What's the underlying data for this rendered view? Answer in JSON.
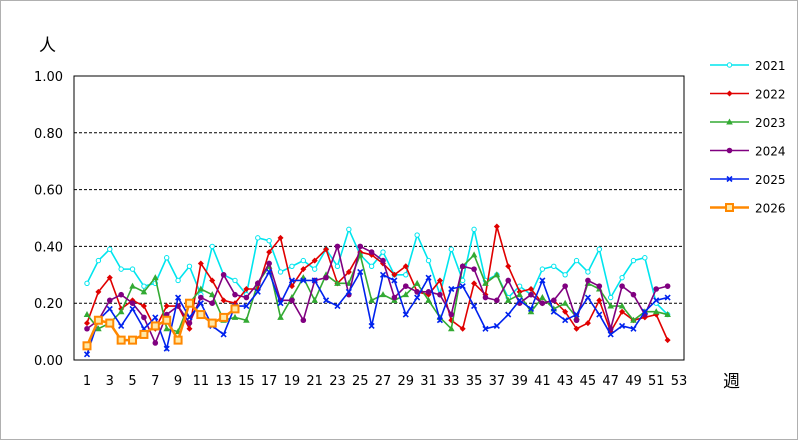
{
  "chart_data": {
    "type": "line",
    "ylabel": "人",
    "xlabel": "週",
    "ylim": [
      0,
      1.0
    ],
    "yticks": [
      "0.00",
      "0.20",
      "0.40",
      "0.60",
      "0.80",
      "1.00"
    ],
    "xlim": [
      1,
      53
    ],
    "xticks": [
      1,
      3,
      5,
      7,
      9,
      11,
      13,
      15,
      17,
      19,
      21,
      23,
      25,
      27,
      29,
      31,
      33,
      35,
      37,
      39,
      41,
      43,
      45,
      47,
      49,
      51,
      53
    ],
    "grid": "horizontal-dashed",
    "legend_position": "right",
    "series": [
      {
        "name": "2021",
        "color": "#00e5ee",
        "marker": "circle-open",
        "values": [
          0.27,
          0.35,
          0.39,
          0.32,
          0.32,
          0.26,
          0.27,
          0.36,
          0.28,
          0.33,
          0.23,
          0.4,
          0.3,
          0.28,
          0.23,
          0.43,
          0.42,
          0.31,
          0.33,
          0.35,
          0.32,
          0.39,
          0.33,
          0.46,
          0.37,
          0.33,
          0.38,
          0.3,
          0.3,
          0.44,
          0.35,
          0.23,
          0.39,
          0.28,
          0.46,
          0.28,
          0.3,
          0.22,
          0.26,
          0.23,
          0.32,
          0.33,
          0.3,
          0.35,
          0.31,
          0.39,
          0.22,
          0.29,
          0.35,
          0.36,
          0.2,
          0.16
        ]
      },
      {
        "name": "2022",
        "color": "#e00000",
        "marker": "diamond",
        "values": [
          0.13,
          0.24,
          0.29,
          0.18,
          0.21,
          0.19,
          0.11,
          0.19,
          0.19,
          0.11,
          0.34,
          0.28,
          0.21,
          0.2,
          0.25,
          0.25,
          0.38,
          0.43,
          0.26,
          0.32,
          0.35,
          0.39,
          0.27,
          0.31,
          0.38,
          0.37,
          0.34,
          0.3,
          0.33,
          0.24,
          0.23,
          0.28,
          0.14,
          0.11,
          0.27,
          0.23,
          0.47,
          0.33,
          0.24,
          0.25,
          0.2,
          0.21,
          0.17,
          0.11,
          0.13,
          0.21,
          0.1,
          0.17,
          0.14,
          0.15,
          0.16,
          0.07
        ]
      },
      {
        "name": "2023",
        "color": "#33aa33",
        "marker": "triangle",
        "values": [
          0.16,
          0.11,
          0.13,
          0.17,
          0.26,
          0.24,
          0.29,
          0.11,
          0.1,
          0.2,
          0.25,
          0.23,
          0.14,
          0.15,
          0.14,
          0.27,
          0.33,
          0.15,
          0.22,
          0.29,
          0.21,
          0.3,
          0.27,
          0.27,
          0.37,
          0.21,
          0.23,
          0.21,
          0.23,
          0.27,
          0.21,
          0.15,
          0.11,
          0.33,
          0.37,
          0.27,
          0.3,
          0.21,
          0.23,
          0.17,
          0.22,
          0.18,
          0.2,
          0.15,
          0.27,
          0.25,
          0.19,
          0.19,
          0.14,
          0.17,
          0.17,
          0.16
        ]
      },
      {
        "name": "2024",
        "color": "#800080",
        "marker": "circle",
        "values": [
          0.11,
          0.14,
          0.21,
          0.23,
          0.2,
          0.15,
          0.06,
          0.16,
          0.19,
          0.13,
          0.22,
          0.2,
          0.3,
          0.23,
          0.22,
          0.27,
          0.34,
          0.21,
          0.21,
          0.14,
          0.28,
          0.29,
          0.4,
          0.23,
          0.4,
          0.38,
          0.35,
          0.22,
          0.26,
          0.24,
          0.24,
          0.23,
          0.16,
          0.33,
          0.32,
          0.22,
          0.21,
          0.28,
          0.2,
          0.23,
          0.2,
          0.21,
          0.26,
          0.14,
          0.28,
          0.26,
          0.11,
          0.26,
          0.23,
          0.16,
          0.25,
          0.26
        ]
      },
      {
        "name": "2025",
        "color": "#0022ee",
        "marker": "x",
        "values": [
          0.02,
          0.14,
          0.18,
          0.12,
          0.18,
          0.11,
          0.15,
          0.04,
          0.22,
          0.15,
          0.2,
          0.12,
          0.09,
          0.19,
          0.19,
          0.24,
          0.31,
          0.2,
          0.28,
          0.28,
          0.28,
          0.21,
          0.19,
          0.24,
          0.31,
          0.12,
          0.3,
          0.28,
          0.16,
          0.22,
          0.29,
          0.14,
          0.25,
          0.26,
          0.19,
          0.11,
          0.12,
          0.16,
          0.21,
          0.18,
          0.28,
          0.17,
          0.14,
          0.16,
          0.22,
          0.16,
          0.09,
          0.12,
          0.11,
          0.17,
          0.21,
          0.22
        ]
      },
      {
        "name": "2026",
        "color": "#ff8800",
        "marker": "square",
        "values": [
          0.05,
          0.14,
          0.13,
          0.07,
          0.07,
          0.09,
          0.12,
          0.14,
          0.07,
          0.2,
          0.16,
          0.13,
          0.15,
          0.18
        ]
      }
    ]
  }
}
